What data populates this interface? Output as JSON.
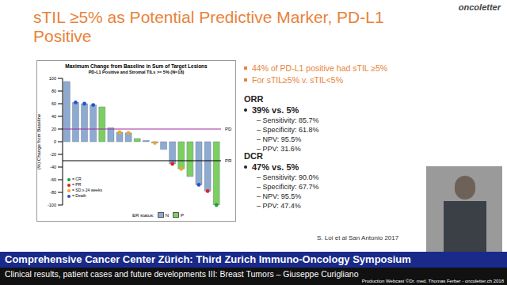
{
  "header": {
    "title": "sTIL ≥5% as Potential Predictive Marker, PD-L1 Positive",
    "logo": "oncoletter"
  },
  "chart_data": {
    "type": "bar",
    "title": "Maximum Change from Baseline in Sum of Target Lesions",
    "subtitle": "PD-L1 Positive and Stromal TILs >= 5% (N=18)",
    "y_label": "(%) Change from Baseline",
    "categories": [
      null,
      null,
      null,
      null,
      null,
      null,
      null,
      null,
      null,
      null,
      null,
      null,
      null,
      null,
      null,
      null,
      null,
      null
    ],
    "values": [
      95,
      62,
      60,
      58,
      55,
      22,
      15,
      14,
      5,
      2,
      -2,
      -12,
      -35,
      -43,
      -55,
      -68,
      -78,
      -100
    ],
    "er": [
      "N",
      "N",
      "N",
      "N",
      "P",
      "N",
      "N",
      "N",
      "P",
      "N",
      "N",
      "N",
      "N",
      "P",
      "P",
      "N",
      "N",
      "P"
    ],
    "response": [
      null,
      "= Death",
      "= Death",
      "= Death",
      null,
      null,
      "= SD ≥ 24 weeks",
      "= SD ≥ 24 weeks",
      null,
      null,
      "= SD ≥ 24 weeks",
      null,
      "= PR",
      "= SD ≥ 24 weeks",
      null,
      "= Death",
      "= PR",
      "= CR"
    ],
    "responses": [
      {
        "name": "= CR",
        "color": "#1e9e3a"
      },
      {
        "name": "= PR",
        "color": "#e02020"
      },
      {
        "name": "= SD ≥ 24 weeks",
        "color": "#f5a623"
      },
      {
        "name": "= Death",
        "color": "#2850c8"
      }
    ],
    "group_title": "ER status:",
    "groups": [
      {
        "name": "N",
        "color": "#8eaad0"
      },
      {
        "name": "P",
        "color": "#7ccf5f"
      }
    ],
    "reference_lines": [
      {
        "value": 20,
        "label": "PD",
        "color": "#9b2f9b"
      },
      {
        "value": -30,
        "label": "PR",
        "color": "#000000"
      }
    ],
    "ylim": [
      -100,
      100
    ],
    "yticks": [
      -100,
      -80,
      -60,
      -40,
      -20,
      0,
      20,
      40,
      60,
      80,
      100
    ],
    "tick_labels": "y"
  },
  "bullets": [
    "44% of PD-L1 positive had sTIL ≥5%",
    "For sTIL≥5% v. sTIL<5%"
  ],
  "sections": [
    {
      "heading": "ORR",
      "value": "39% vs. 5%",
      "items": [
        "– Sensitivity: 85.7%",
        "– Specificity: 61.8%",
        "– NPV: 95.5%",
        "– PPV: 31.6%"
      ]
    },
    {
      "heading": "DCR",
      "value": "47% vs. 5%",
      "items": [
        "– Sensitivity: 90.0%",
        "– Specificity: 67.7%",
        "– NPV: 95.5%",
        "– PPV: 47.4%"
      ]
    }
  ],
  "citation": "S. Loi et al San Antonio 2017",
  "footer": {
    "title": "Comprehensive Cancer Center Zürich: Third Zurich Immuno-Oncology Symposium",
    "subtitle": "Clinical results, patient cases and future developments III: Breast Tumors – Giuseppe Curigliano",
    "credit": "Production Webcast ©Dr. med. Thomas Ferber - oncoletter.ch 2018"
  }
}
